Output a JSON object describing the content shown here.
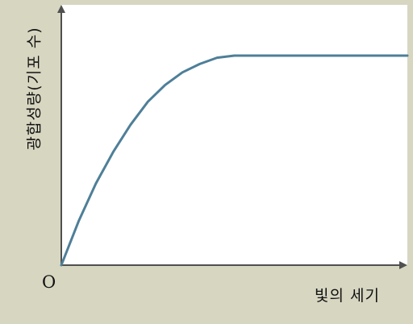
{
  "chart_data": {
    "type": "line",
    "xlabel": "빛의 세기",
    "ylabel": "광합성량(기포 수)",
    "origin_label": "O",
    "xlim": [
      0,
      1
    ],
    "ylim": [
      0,
      1
    ],
    "grid": false,
    "series": [
      {
        "color": "#4e7f98",
        "x": [
          0,
          0.05,
          0.1,
          0.15,
          0.2,
          0.25,
          0.3,
          0.35,
          0.4,
          0.45,
          0.5,
          0.55,
          0.6,
          0.7,
          0.8,
          0.9,
          1.0
        ],
        "y": [
          0,
          0.21,
          0.39,
          0.54,
          0.67,
          0.78,
          0.86,
          0.92,
          0.96,
          0.99,
          1.0,
          1.0,
          1.0,
          1.0,
          1.0,
          1.0,
          1.0
        ]
      }
    ]
  },
  "colors": {
    "background": "#d7d6c1",
    "plot_area": "#ffffff",
    "axis": "#505050",
    "curve": "#4e7f98"
  }
}
